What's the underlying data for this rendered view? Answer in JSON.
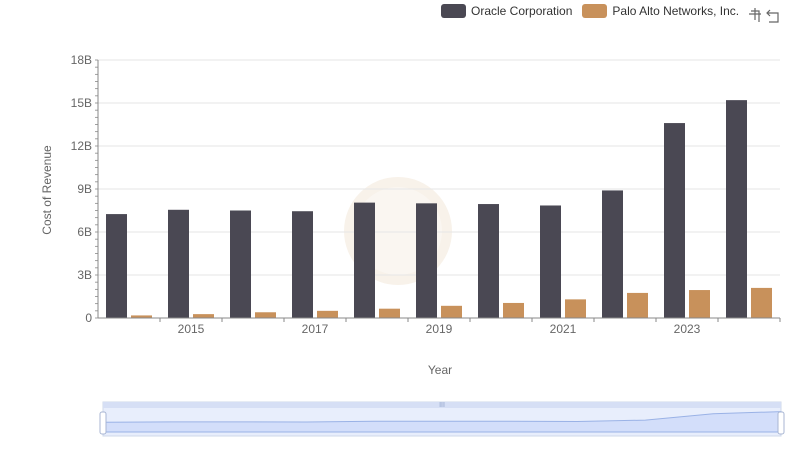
{
  "chart_data": {
    "type": "bar",
    "x": [
      2014,
      2015,
      2016,
      2017,
      2018,
      2019,
      2020,
      2021,
      2022,
      2023,
      2024
    ],
    "xticks": [
      "2015",
      "2017",
      "2019",
      "2021",
      "2023"
    ],
    "yticks": [
      "0",
      "3B",
      "6B",
      "9B",
      "12B",
      "15B",
      "18B"
    ],
    "ylim": [
      0,
      18000000000
    ],
    "xlabel": "Year",
    "ylabel": "Cost of Revenue",
    "legend_position": "top-right",
    "grid": true,
    "series": [
      {
        "name": "Oracle Corporation",
        "color": "#4a4853",
        "values": [
          7250000000,
          7550000000,
          7500000000,
          7450000000,
          8050000000,
          8000000000,
          7950000000,
          7850000000,
          8900000000,
          13600000000,
          15200000000
        ]
      },
      {
        "name": "Palo Alto Networks, Inc.",
        "color": "#c8915b",
        "values": [
          180000000,
          270000000,
          400000000,
          500000000,
          650000000,
          850000000,
          1050000000,
          1300000000,
          1750000000,
          1950000000,
          2100000000
        ]
      }
    ]
  },
  "toolbox": {
    "zoom_icon": "zoom-icon",
    "restore_icon": "restore-icon"
  }
}
